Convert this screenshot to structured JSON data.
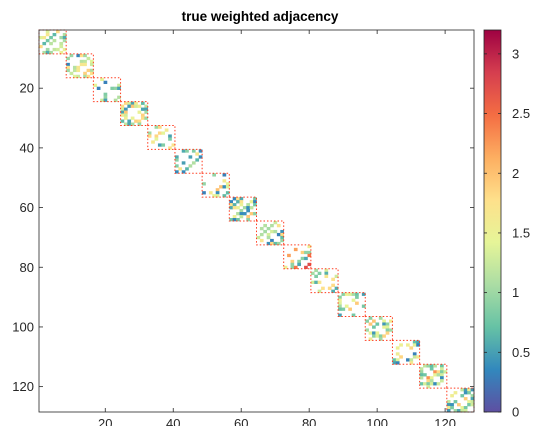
{
  "chart_data": {
    "type": "heatmap",
    "title": "true weighted adjacency",
    "xlabel": "",
    "ylabel": "",
    "xlim": [
      0.5,
      128.5
    ],
    "ylim": [
      0.5,
      128.5
    ],
    "y_reversed": true,
    "x_ticks": [
      20,
      40,
      60,
      80,
      100,
      120
    ],
    "x_tick_labels": [
      "20",
      "40",
      "60",
      "80",
      "100",
      "120"
    ],
    "y_ticks": [
      20,
      40,
      60,
      80,
      100,
      120
    ],
    "y_tick_labels": [
      "20",
      "40",
      "60",
      "80",
      "100",
      "120"
    ],
    "colorbar": {
      "range": [
        0,
        3.2
      ],
      "ticks": [
        0,
        0.5,
        1,
        1.5,
        2,
        2.5,
        3
      ],
      "tick_labels": [
        "0",
        "0.5",
        "1",
        "1.5",
        "2",
        "2.5",
        "3"
      ],
      "colormap": "spectral-reversed",
      "colormap_stops": [
        "#5e4fa2",
        "#3288bd",
        "#66c2a5",
        "#abdda4",
        "#e6f598",
        "#fee08b",
        "#fdae61",
        "#f46d43",
        "#d53e4f",
        "#9e0142"
      ]
    },
    "block_outline_color": "#ff3b1f",
    "diagonal_blocks": [
      {
        "start": 1,
        "end": 8
      },
      {
        "start": 9,
        "end": 16
      },
      {
        "start": 17,
        "end": 24
      },
      {
        "start": 25,
        "end": 32
      },
      {
        "start": 33,
        "end": 40
      },
      {
        "start": 41,
        "end": 48
      },
      {
        "start": 49,
        "end": 56
      },
      {
        "start": 57,
        "end": 64
      },
      {
        "start": 65,
        "end": 72
      },
      {
        "start": 73,
        "end": 80
      },
      {
        "start": 81,
        "end": 88
      },
      {
        "start": 89,
        "end": 96
      },
      {
        "start": 97,
        "end": 104
      },
      {
        "start": 105,
        "end": 112
      },
      {
        "start": 113,
        "end": 120
      },
      {
        "start": 121,
        "end": 128
      }
    ],
    "entry_density": 0.45,
    "typical_weight_range": [
      0.3,
      2.0
    ],
    "max_weight": 3.2
  }
}
